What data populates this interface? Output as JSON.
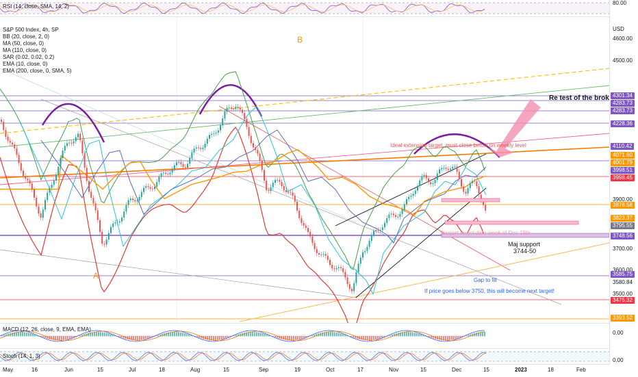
{
  "rsi": {
    "legend": "RSI (14, close, SMA, 14, 2)",
    "level": "80.00"
  },
  "main": {
    "legend": [
      "S&P 500 Index, 4h, SP",
      "BB (20, close, 2, 0)",
      "MA (50, close, 0)",
      "MA (110, close, 0)",
      "SAR (0.02, 0.02, 0.2)",
      "EMA (10, close, 0)",
      "EMA (200, close, 0, SMA, 5)"
    ],
    "currency": "USD",
    "annotations": {
      "wave_b": "B",
      "wave_a": "A",
      "retest": "Re test of the broke",
      "ideal_target": "Ideal extension target, must close below on weekly level",
      "support_target": "Support target date week of Dec 19th",
      "maj_support_title": "Maj support",
      "maj_support_range": "3744-50",
      "gap": "Gap to fill",
      "next_target": "If price goes below 3750, this will become next target!"
    },
    "axis_levels": [
      "4600.00",
      "4500.00",
      "3900.00",
      "3700.00",
      "3600.00",
      "3580.84",
      "3500.00"
    ],
    "price_tags": [
      {
        "value": "4301.34",
        "color": "#7e57c2"
      },
      {
        "value": "4283.73",
        "color": "#7e57c2"
      },
      {
        "value": "4283.73",
        "color": "#7e57c2"
      },
      {
        "value": "4228.36",
        "color": "#7e57c2"
      },
      {
        "value": "4110.42",
        "color": "#7e57c2"
      },
      {
        "value": "4071.60",
        "color": "#ff9800"
      },
      {
        "value": "4001.79",
        "color": "#ff9800"
      },
      {
        "value": "3998.51",
        "color": "#7e57c2"
      },
      {
        "value": "3998.45",
        "color": "#f23645"
      },
      {
        "value": "3878.58",
        "color": "#ff9800"
      },
      {
        "value": "3823.37",
        "color": "#ff9800"
      },
      {
        "value": "3795.55",
        "color": "#787b86"
      },
      {
        "value": "3748.56",
        "color": "#7e57c2"
      },
      {
        "value": "3585.75",
        "color": "#7e57c2"
      },
      {
        "value": "3475.32",
        "color": "#f23645"
      },
      {
        "value": "3393.52",
        "color": "#ff9800"
      }
    ]
  },
  "macd": {
    "legend": "MACD (12, 26, close, 9, EMA, EMA)",
    "level": "0.00"
  },
  "stoch": {
    "legend": "Stoch (14, 1, 3)",
    "level": "0.00"
  },
  "time_axis": [
    {
      "label": "May",
      "bold": false
    },
    {
      "label": "16",
      "bold": false
    },
    {
      "label": "Jun",
      "bold": false
    },
    {
      "label": "15",
      "bold": false
    },
    {
      "label": "Jul",
      "bold": false
    },
    {
      "label": "18",
      "bold": false
    },
    {
      "label": "Aug",
      "bold": false
    },
    {
      "label": "15",
      "bold": false
    },
    {
      "label": "Sep",
      "bold": false
    },
    {
      "label": "19",
      "bold": false
    },
    {
      "label": "Oct",
      "bold": false
    },
    {
      "label": "17",
      "bold": false
    },
    {
      "label": "Nov",
      "bold": false
    },
    {
      "label": "15",
      "bold": false
    },
    {
      "label": "Dec",
      "bold": false
    },
    {
      "label": "15",
      "bold": false
    },
    {
      "label": "2023",
      "bold": true
    },
    {
      "label": "18",
      "bold": false
    },
    {
      "label": "Feb",
      "bold": false
    }
  ]
}
